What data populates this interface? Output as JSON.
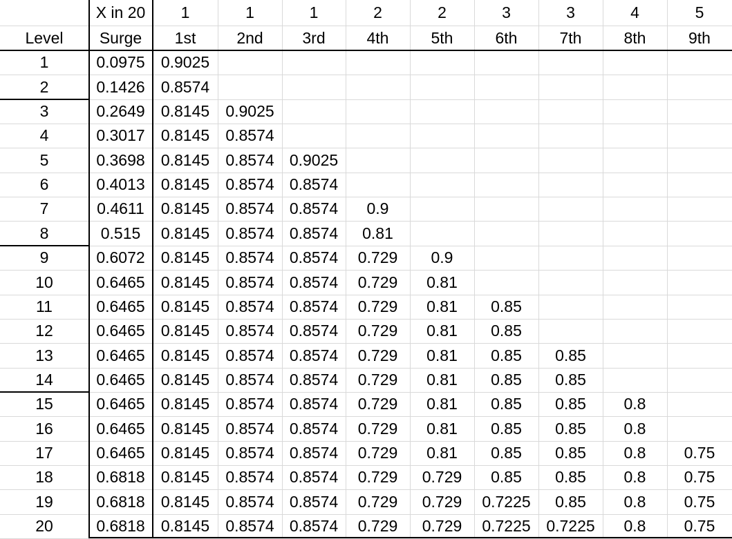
{
  "header_row1": [
    "",
    "X in 20",
    "1",
    "1",
    "1",
    "2",
    "2",
    "3",
    "3",
    "4",
    "5"
  ],
  "header_row2": [
    "Level",
    "Surge",
    "1st",
    "2nd",
    "3rd",
    "4th",
    "5th",
    "6th",
    "7th",
    "8th",
    "9th"
  ],
  "rows": [
    [
      "1",
      "0.0975",
      "0.9025",
      "",
      "",
      "",
      "",
      "",
      "",
      "",
      ""
    ],
    [
      "2",
      "0.1426",
      "0.8574",
      "",
      "",
      "",
      "",
      "",
      "",
      "",
      ""
    ],
    [
      "3",
      "0.2649",
      "0.8145",
      "0.9025",
      "",
      "",
      "",
      "",
      "",
      "",
      ""
    ],
    [
      "4",
      "0.3017",
      "0.8145",
      "0.8574",
      "",
      "",
      "",
      "",
      "",
      "",
      ""
    ],
    [
      "5",
      "0.3698",
      "0.8145",
      "0.8574",
      "0.9025",
      "",
      "",
      "",
      "",
      "",
      ""
    ],
    [
      "6",
      "0.4013",
      "0.8145",
      "0.8574",
      "0.8574",
      "",
      "",
      "",
      "",
      "",
      ""
    ],
    [
      "7",
      "0.4611",
      "0.8145",
      "0.8574",
      "0.8574",
      "0.9",
      "",
      "",
      "",
      "",
      ""
    ],
    [
      "8",
      "0.515",
      "0.8145",
      "0.8574",
      "0.8574",
      "0.81",
      "",
      "",
      "",
      "",
      ""
    ],
    [
      "9",
      "0.6072",
      "0.8145",
      "0.8574",
      "0.8574",
      "0.729",
      "0.9",
      "",
      "",
      "",
      ""
    ],
    [
      "10",
      "0.6465",
      "0.8145",
      "0.8574",
      "0.8574",
      "0.729",
      "0.81",
      "",
      "",
      "",
      ""
    ],
    [
      "11",
      "0.6465",
      "0.8145",
      "0.8574",
      "0.8574",
      "0.729",
      "0.81",
      "0.85",
      "",
      "",
      ""
    ],
    [
      "12",
      "0.6465",
      "0.8145",
      "0.8574",
      "0.8574",
      "0.729",
      "0.81",
      "0.85",
      "",
      "",
      ""
    ],
    [
      "13",
      "0.6465",
      "0.8145",
      "0.8574",
      "0.8574",
      "0.729",
      "0.81",
      "0.85",
      "0.85",
      "",
      ""
    ],
    [
      "14",
      "0.6465",
      "0.8145",
      "0.8574",
      "0.8574",
      "0.729",
      "0.81",
      "0.85",
      "0.85",
      "",
      ""
    ],
    [
      "15",
      "0.6465",
      "0.8145",
      "0.8574",
      "0.8574",
      "0.729",
      "0.81",
      "0.85",
      "0.85",
      "0.8",
      ""
    ],
    [
      "16",
      "0.6465",
      "0.8145",
      "0.8574",
      "0.8574",
      "0.729",
      "0.81",
      "0.85",
      "0.85",
      "0.8",
      ""
    ],
    [
      "17",
      "0.6465",
      "0.8145",
      "0.8574",
      "0.8574",
      "0.729",
      "0.81",
      "0.85",
      "0.85",
      "0.8",
      "0.75"
    ],
    [
      "18",
      "0.6818",
      "0.8145",
      "0.8574",
      "0.8574",
      "0.729",
      "0.729",
      "0.85",
      "0.85",
      "0.8",
      "0.75"
    ],
    [
      "19",
      "0.6818",
      "0.8145",
      "0.8574",
      "0.8574",
      "0.729",
      "0.729",
      "0.7225",
      "0.85",
      "0.8",
      "0.75"
    ],
    [
      "20",
      "0.6818",
      "0.8145",
      "0.8574",
      "0.8574",
      "0.729",
      "0.729",
      "0.7225",
      "0.7225",
      "0.8",
      "0.75"
    ]
  ],
  "colors": {
    "gridline": "#d9d9d9",
    "border": "#000000",
    "text": "#000000",
    "background": "#ffffff"
  }
}
